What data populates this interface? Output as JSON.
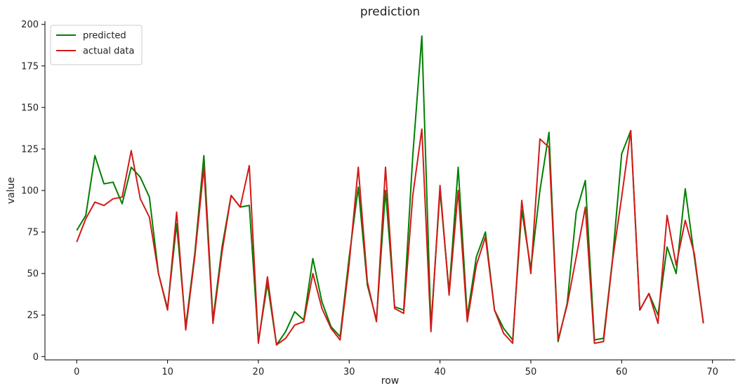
{
  "chart_data": {
    "type": "line",
    "title": "prediction",
    "xlabel": "row",
    "ylabel": "value",
    "xlim": [
      -3.5,
      72.5
    ],
    "ylim": [
      -2,
      202
    ],
    "xticks": [
      0,
      10,
      20,
      30,
      40,
      50,
      60,
      70
    ],
    "yticks": [
      0,
      25,
      50,
      75,
      100,
      125,
      150,
      175,
      200
    ],
    "grid": false,
    "legend_position": "top-left",
    "x": [
      0,
      1,
      2,
      3,
      4,
      5,
      6,
      7,
      8,
      9,
      10,
      11,
      12,
      13,
      14,
      15,
      16,
      17,
      18,
      19,
      20,
      21,
      22,
      23,
      24,
      25,
      26,
      27,
      28,
      29,
      30,
      31,
      32,
      33,
      34,
      35,
      36,
      37,
      38,
      39,
      40,
      41,
      42,
      43,
      44,
      45,
      46,
      47,
      48,
      49,
      50,
      51,
      52,
      53,
      54,
      55,
      56,
      57,
      58,
      59,
      60,
      61,
      62,
      63,
      64,
      65,
      66,
      67,
      68,
      69
    ],
    "series": [
      {
        "name": "predicted",
        "color": "#008000",
        "values": [
          76,
          85,
          121,
          104,
          105,
          92,
          114,
          108,
          96,
          50,
          29,
          80,
          18,
          62,
          121,
          22,
          66,
          97,
          90,
          91,
          9,
          44,
          7,
          15,
          27,
          22,
          59,
          33,
          18,
          12,
          60,
          102,
          43,
          22,
          100,
          30,
          28,
          121,
          193,
          18,
          100,
          39,
          114,
          24,
          60,
          75,
          28,
          17,
          10,
          88,
          53,
          100,
          135,
          9,
          32,
          87,
          106,
          10,
          11,
          59,
          122,
          136,
          28,
          38,
          25,
          66,
          50,
          101,
          60,
          20
        ]
      },
      {
        "name": "actual data",
        "color": "#d41919",
        "values": [
          69,
          83,
          93,
          91,
          95,
          96,
          124,
          95,
          84,
          50,
          28,
          87,
          16,
          60,
          114,
          20,
          63,
          97,
          90,
          115,
          8,
          48,
          7,
          11,
          19,
          21,
          50,
          29,
          17,
          10,
          56,
          114,
          45,
          21,
          114,
          29,
          26,
          97,
          137,
          15,
          103,
          37,
          100,
          21,
          55,
          72,
          28,
          14,
          8,
          94,
          50,
          131,
          126,
          10,
          31,
          60,
          90,
          8,
          9,
          58,
          96,
          136,
          28,
          38,
          20,
          85,
          55,
          82,
          62,
          20
        ]
      }
    ]
  }
}
